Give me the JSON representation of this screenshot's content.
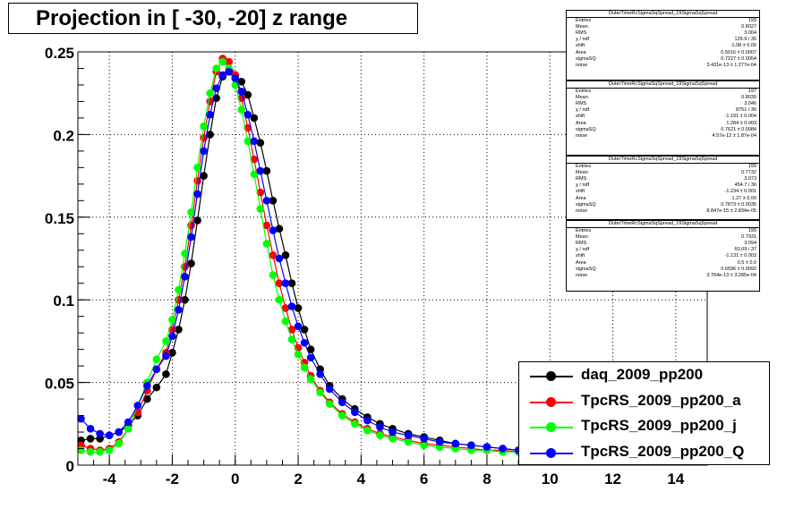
{
  "title": "Projection in [ -30, -20] z range",
  "colors": {
    "daq": "#000000",
    "a": "#ff0000",
    "j": "#00ff00",
    "Q": "#0000ff"
  },
  "chart_data": {
    "type": "scatter",
    "title": "Projection in [ -30, -20] z range",
    "xlabel": "",
    "ylabel": "",
    "xlim": [
      -5,
      15
    ],
    "ylim": [
      0,
      0.25
    ],
    "xticks": [
      "-4",
      "-2",
      "0",
      "2",
      "4",
      "6",
      "8",
      "10",
      "12",
      "14"
    ],
    "xtick_values": [
      -4,
      -2,
      0,
      2,
      4,
      6,
      8,
      10,
      12,
      14
    ],
    "yticks": [
      "0",
      "0.05",
      "0.1",
      "0.15",
      "0.2",
      "0.25"
    ],
    "ytick_values": [
      0,
      0.05,
      0.1,
      0.15,
      0.2,
      0.25
    ],
    "grid": true,
    "legend_position": "bottom-right",
    "series": [
      {
        "name": "daq_2009_pp200",
        "color": "#000000",
        "x": [
          -4.9,
          -4.6,
          -4.3,
          -4.0,
          -3.7,
          -3.4,
          -3.1,
          -2.8,
          -2.5,
          -2.2,
          -2.0,
          -1.8,
          -1.6,
          -1.4,
          -1.2,
          -1.0,
          -0.8,
          -0.6,
          -0.4,
          -0.2,
          0.0,
          0.2,
          0.4,
          0.6,
          0.8,
          1.0,
          1.2,
          1.4,
          1.6,
          1.8,
          2.0,
          2.2,
          2.4,
          2.7,
          3.0,
          3.4,
          3.8,
          4.2,
          4.6,
          5.0,
          5.5,
          6.0,
          6.5,
          7.0,
          7.5,
          8.0,
          8.5,
          9.0
        ],
        "y": [
          0.015,
          0.016,
          0.016,
          0.018,
          0.02,
          0.024,
          0.03,
          0.04,
          0.047,
          0.055,
          0.068,
          0.082,
          0.1,
          0.122,
          0.148,
          0.175,
          0.2,
          0.222,
          0.235,
          0.238,
          0.236,
          0.232,
          0.224,
          0.21,
          0.195,
          0.178,
          0.16,
          0.143,
          0.127,
          0.11,
          0.095,
          0.082,
          0.07,
          0.058,
          0.048,
          0.04,
          0.034,
          0.029,
          0.025,
          0.022,
          0.019,
          0.017,
          0.015,
          0.013,
          0.012,
          0.011,
          0.01,
          0.009
        ]
      },
      {
        "name": "TpcRS_2009_pp200_a",
        "color": "#ff0000",
        "x": [
          -4.9,
          -4.6,
          -4.3,
          -4.0,
          -3.7,
          -3.4,
          -3.1,
          -2.8,
          -2.5,
          -2.2,
          -2.0,
          -1.8,
          -1.6,
          -1.4,
          -1.2,
          -1.0,
          -0.8,
          -0.6,
          -0.4,
          -0.2,
          0.0,
          0.2,
          0.4,
          0.6,
          0.8,
          1.0,
          1.2,
          1.4,
          1.6,
          1.8,
          2.0,
          2.2,
          2.4,
          2.7,
          3.0,
          3.4,
          3.8,
          4.2,
          4.6,
          5.0,
          5.5,
          6.0,
          6.5,
          7.0,
          7.5,
          8.0,
          8.5,
          9.0
        ],
        "y": [
          0.012,
          0.01,
          0.009,
          0.01,
          0.014,
          0.022,
          0.032,
          0.045,
          0.058,
          0.068,
          0.082,
          0.1,
          0.12,
          0.145,
          0.172,
          0.198,
          0.22,
          0.238,
          0.246,
          0.244,
          0.236,
          0.222,
          0.204,
          0.185,
          0.165,
          0.145,
          0.127,
          0.11,
          0.095,
          0.082,
          0.071,
          0.062,
          0.054,
          0.045,
          0.038,
          0.031,
          0.026,
          0.022,
          0.019,
          0.017,
          0.015,
          0.013,
          0.012,
          0.011,
          0.01,
          0.009,
          0.009,
          0.008
        ]
      },
      {
        "name": "TpcRS_2009_pp200_j",
        "color": "#00ff00",
        "x": [
          -4.9,
          -4.6,
          -4.3,
          -4.0,
          -3.7,
          -3.4,
          -3.1,
          -2.8,
          -2.5,
          -2.2,
          -2.0,
          -1.8,
          -1.6,
          -1.4,
          -1.2,
          -1.0,
          -0.8,
          -0.6,
          -0.4,
          -0.2,
          0.0,
          0.2,
          0.4,
          0.6,
          0.8,
          1.0,
          1.2,
          1.4,
          1.6,
          1.8,
          2.0,
          2.2,
          2.4,
          2.7,
          3.0,
          3.4,
          3.8,
          4.2,
          4.6,
          5.0,
          5.5,
          6.0,
          6.5,
          7.0,
          7.5,
          8.0,
          8.5,
          9.0
        ],
        "y": [
          0.009,
          0.008,
          0.008,
          0.009,
          0.013,
          0.022,
          0.036,
          0.05,
          0.064,
          0.075,
          0.088,
          0.106,
          0.128,
          0.153,
          0.18,
          0.205,
          0.225,
          0.24,
          0.244,
          0.24,
          0.23,
          0.215,
          0.196,
          0.176,
          0.155,
          0.134,
          0.115,
          0.1,
          0.087,
          0.076,
          0.067,
          0.059,
          0.052,
          0.044,
          0.037,
          0.03,
          0.025,
          0.021,
          0.018,
          0.016,
          0.014,
          0.012,
          0.011,
          0.01,
          0.009,
          0.009,
          0.008,
          0.008
        ]
      },
      {
        "name": "TpcRS_2009_pp200_Q",
        "color": "#0000ff",
        "x": [
          -4.9,
          -4.6,
          -4.3,
          -4.0,
          -3.7,
          -3.4,
          -3.1,
          -2.8,
          -2.5,
          -2.2,
          -2.0,
          -1.8,
          -1.6,
          -1.4,
          -1.2,
          -1.0,
          -0.8,
          -0.6,
          -0.4,
          -0.2,
          0.0,
          0.2,
          0.4,
          0.6,
          0.8,
          1.0,
          1.2,
          1.4,
          1.6,
          1.8,
          2.0,
          2.2,
          2.4,
          2.7,
          3.0,
          3.4,
          3.8,
          4.2,
          4.6,
          5.0,
          5.5,
          6.0,
          6.5,
          7.0,
          7.5,
          8.0,
          8.5,
          9.0
        ],
        "y": [
          0.028,
          0.022,
          0.019,
          0.018,
          0.02,
          0.026,
          0.036,
          0.048,
          0.058,
          0.066,
          0.078,
          0.094,
          0.114,
          0.138,
          0.164,
          0.19,
          0.212,
          0.228,
          0.236,
          0.238,
          0.234,
          0.226,
          0.212,
          0.196,
          0.178,
          0.16,
          0.142,
          0.125,
          0.11,
          0.096,
          0.084,
          0.074,
          0.065,
          0.055,
          0.046,
          0.038,
          0.032,
          0.027,
          0.023,
          0.02,
          0.018,
          0.016,
          0.014,
          0.013,
          0.012,
          0.011,
          0.01,
          0.009
        ]
      }
    ]
  },
  "stats_boxes": [
    {
      "title": "OuterTimeRcSigmaSqSpread_19SigmaSqSpread",
      "rows": [
        [
          "Entries",
          "199"
        ],
        [
          "Mean",
          "0.8027"
        ],
        [
          "RMS",
          "3.004"
        ],
        [
          "χ  / ndf",
          "129.9 / 35"
        ],
        [
          "shift",
          "-1.08 ± 0.00"
        ],
        [
          "Area",
          "0.5016 ± 0.0007"
        ],
        [
          "sigmaSQ",
          "0.7227 ± 0.0054"
        ],
        [
          "noise",
          "3.431e-13 ± 1.277e-04"
        ]
      ]
    },
    {
      "title": "OuterTimeRcSigmaSqSpread_19SigmaSqSpread",
      "rows": [
        [
          "Entries",
          "197"
        ],
        [
          "Mean",
          "0.8039"
        ],
        [
          "RMS",
          "3.046"
        ],
        [
          "χ  / ndf",
          "8751 / 36"
        ],
        [
          "shift",
          "-1.191 ± 0.004"
        ],
        [
          "Area",
          "1.284 ± 0.003"
        ],
        [
          "sigmaSQ",
          "0.7621 ± 0.0084"
        ],
        [
          "noise",
          "4.57e-12 ± 1.87e-04"
        ]
      ]
    },
    {
      "title": "OuterTimeRcSigmaSqSpread_19SigmaSqSpread",
      "rows": [
        [
          "Entries",
          "199"
        ],
        [
          "Mean",
          "0.7732"
        ],
        [
          "RMS",
          "3.073"
        ],
        [
          "χ  / ndf",
          "454.7 / 36"
        ],
        [
          "shift",
          "-1.234 ± 0.001"
        ],
        [
          "Area",
          "1.27 ± 0.00"
        ],
        [
          "sigmaSQ",
          "0.7873 ± 0.0035"
        ],
        [
          "noise",
          "8.847e-15 ± 2.834e-05"
        ]
      ]
    },
    {
      "title": "OuterTimeRcSigmaSqSpread_19SigmaSqSpread",
      "rows": [
        [
          "Entries",
          "199"
        ],
        [
          "Mean",
          "0.7931"
        ],
        [
          "RMS",
          "3.094"
        ],
        [
          "χ  / ndf",
          "60.09 / 37"
        ],
        [
          "shift",
          "-1.131 ± 0.003"
        ],
        [
          "Area",
          "0.5 ± 0.0"
        ],
        [
          "sigmaSQ",
          "0.6596 ± 0.0092"
        ],
        [
          "noise",
          "3.764e-13 ± 3.285e-04"
        ]
      ]
    }
  ],
  "legend": [
    {
      "label": "daq_2009_pp200",
      "color": "#000000"
    },
    {
      "label": "TpcRS_2009_pp200_a",
      "color": "#ff0000"
    },
    {
      "label": "TpcRS_2009_pp200_j",
      "color": "#00ff00"
    },
    {
      "label": "TpcRS_2009_pp200_Q",
      "color": "#0000ff"
    }
  ]
}
